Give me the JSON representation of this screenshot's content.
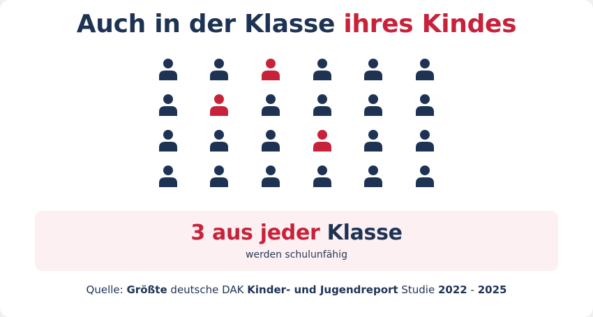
{
  "title": {
    "part1": "Auch in der Klasse",
    "part2": "ihres Kindes"
  },
  "icon_name": "person-icon",
  "colors": {
    "navy": "#1e3354",
    "red": "#c8223b",
    "banner_bg": "#fcf0f2"
  },
  "grid": {
    "rows": [
      [
        "navy",
        "navy",
        "red",
        "navy",
        "navy",
        "navy"
      ],
      [
        "navy",
        "red",
        "navy",
        "navy",
        "navy",
        "navy"
      ],
      [
        "navy",
        "navy",
        "navy",
        "red",
        "navy",
        "navy"
      ],
      [
        "navy",
        "navy",
        "navy",
        "navy",
        "navy",
        "navy"
      ]
    ]
  },
  "banner": {
    "headline_red": "3 aus jeder",
    "headline_navy": "Klasse",
    "subline": "werden schulunfähig"
  },
  "source": {
    "label": "Quelle:",
    "s1": "Größte",
    "s2": "deutsche DAK",
    "s3": "Kinder- und Jugendreport",
    "s4": "Studie",
    "s5": "2022",
    "s6": "-",
    "s7": "2025"
  }
}
